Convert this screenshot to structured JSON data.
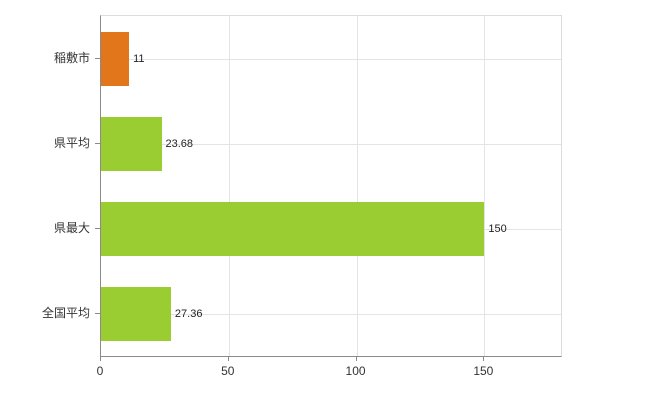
{
  "chart_data": {
    "type": "bar",
    "orientation": "horizontal",
    "title": "",
    "xlabel": "",
    "ylabel": "",
    "categories": [
      "稲敷市",
      "県平均",
      "県最大",
      "全国平均"
    ],
    "values": [
      11,
      23.68,
      150,
      27.36
    ],
    "value_labels": [
      "11",
      "23.68",
      "150",
      "27.36"
    ],
    "bar_colors": [
      "#e2761b",
      "#9acd32",
      "#9acd32",
      "#9acd32"
    ],
    "xlim": [
      0,
      180
    ],
    "xticks": [
      0,
      50,
      100,
      150
    ],
    "xtick_labels": [
      "0",
      "50",
      "100",
      "150"
    ],
    "grid": true,
    "legend": "none",
    "colors": {
      "background": "#ffffff",
      "grid": "#e4e4e4",
      "axis": "#8a8a8a",
      "frame": "#dcdcdc",
      "text": "#333333"
    }
  }
}
